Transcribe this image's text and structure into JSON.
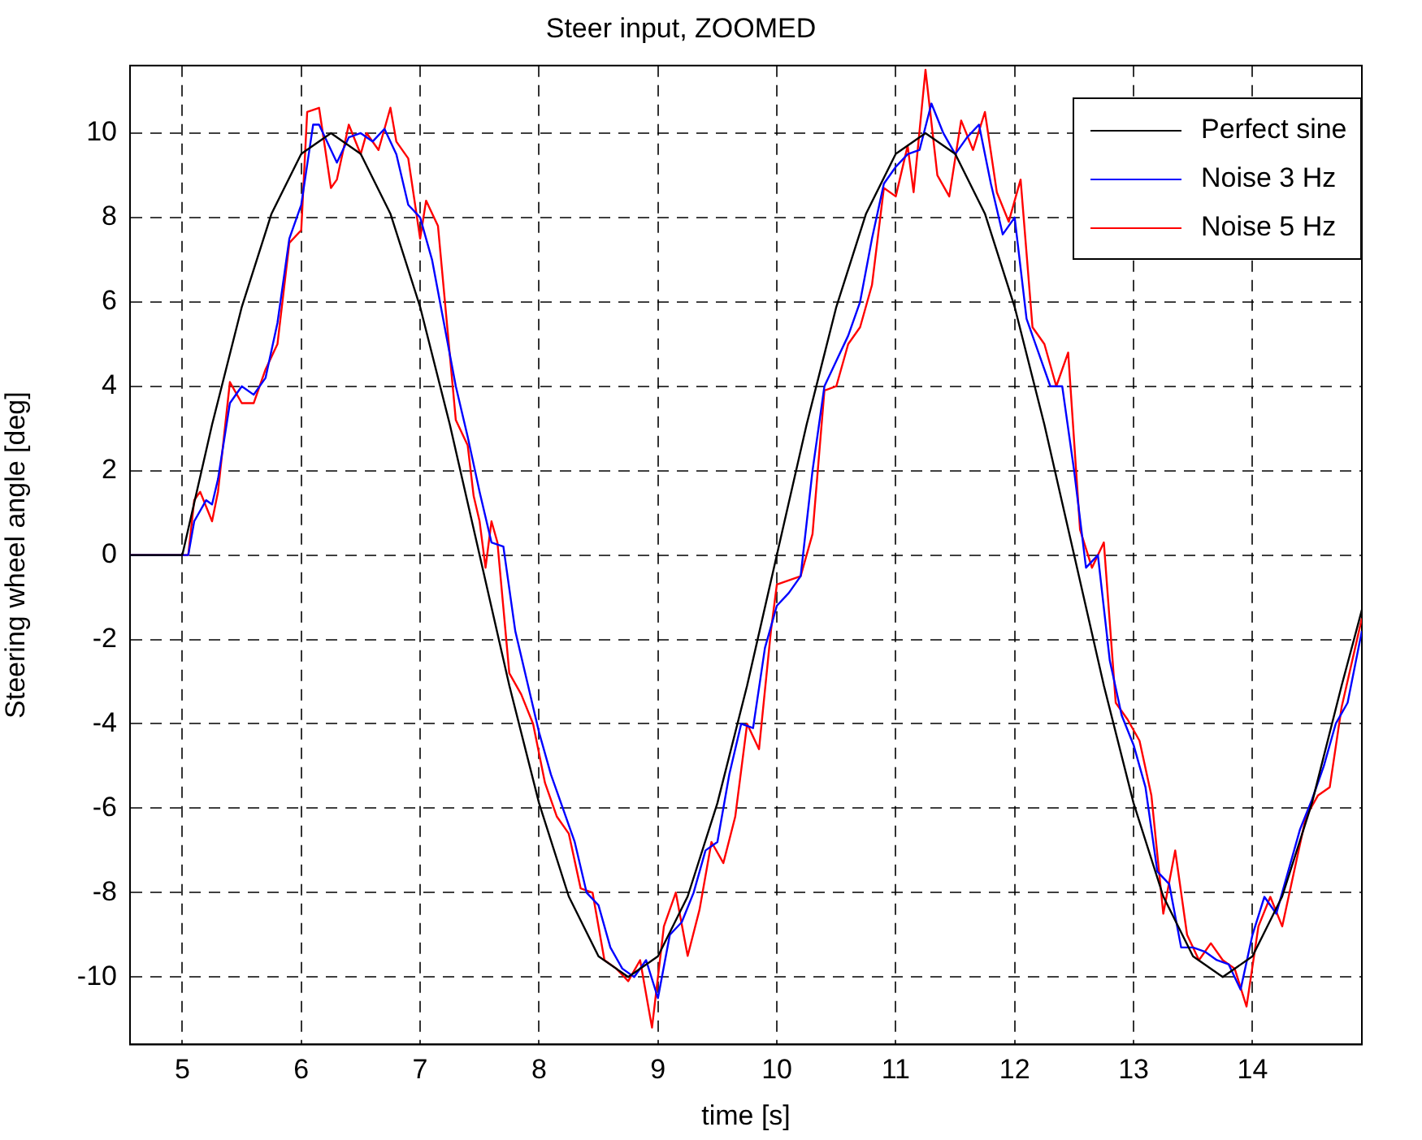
{
  "chart_data": {
    "type": "line",
    "title": "Steer input, ZOOMED",
    "xlabel": "time [s]",
    "ylabel": "Steering wheel angle [deg]",
    "xlim": [
      4.56,
      14.92
    ],
    "ylim": [
      -11.6,
      11.6
    ],
    "xticks": [
      5,
      6,
      7,
      8,
      9,
      10,
      11,
      12,
      13,
      14
    ],
    "yticks": [
      -10,
      -8,
      -6,
      -4,
      -2,
      0,
      2,
      4,
      6,
      8,
      10
    ],
    "grid": true,
    "legend": "top right",
    "marker": "none",
    "line_style": "solid",
    "series": [
      {
        "name": "Perfect sine",
        "color": "#000000",
        "x": [
          4.56,
          5,
          5.25,
          5.5,
          5.75,
          6,
          6.25,
          6.5,
          6.75,
          7,
          7.25,
          7.5,
          7.75,
          8,
          8.25,
          8.5,
          8.75,
          9,
          9.25,
          9.5,
          9.75,
          10,
          10.25,
          10.5,
          10.75,
          11,
          11.25,
          11.5,
          11.75,
          12,
          12.25,
          12.5,
          12.75,
          13,
          13.25,
          13.5,
          13.75,
          14,
          14.25,
          14.5,
          14.75,
          14.92
        ],
        "values": [
          0,
          0,
          3.09,
          5.88,
          8.09,
          9.51,
          10,
          9.51,
          8.09,
          5.88,
          3.09,
          0,
          -3.09,
          -5.88,
          -8.09,
          -9.51,
          -10,
          -9.51,
          -8.09,
          -5.88,
          -3.09,
          0,
          3.09,
          5.88,
          8.09,
          9.51,
          10,
          9.51,
          8.09,
          5.88,
          3.09,
          0,
          -3.09,
          -5.88,
          -8.09,
          -9.51,
          -10,
          -9.51,
          -8.09,
          -5.88,
          -3.09,
          -1.3
        ]
      },
      {
        "name": "Noise 3 Hz",
        "color": "#0000ff",
        "x": [
          4.56,
          5.05,
          5.1,
          5.2,
          5.25,
          5.3,
          5.4,
          5.5,
          5.6,
          5.7,
          5.8,
          5.9,
          6,
          6.1,
          6.15,
          6.3,
          6.4,
          6.5,
          6.6,
          6.7,
          6.8,
          6.9,
          7,
          7.1,
          7.2,
          7.3,
          7.4,
          7.5,
          7.6,
          7.7,
          7.8,
          7.9,
          8,
          8.1,
          8.2,
          8.3,
          8.4,
          8.5,
          8.6,
          8.7,
          8.8,
          8.9,
          9,
          9.1,
          9.2,
          9.3,
          9.4,
          9.5,
          9.6,
          9.7,
          9.8,
          9.9,
          10,
          10.1,
          10.2,
          10.3,
          10.4,
          10.5,
          10.6,
          10.7,
          10.8,
          10.9,
          11,
          11.1,
          11.2,
          11.3,
          11.4,
          11.5,
          11.6,
          11.7,
          11.8,
          11.9,
          12,
          12.1,
          12.2,
          12.3,
          12.4,
          12.5,
          12.6,
          12.7,
          12.8,
          12.9,
          13,
          13.1,
          13.2,
          13.3,
          13.4,
          13.5,
          13.6,
          13.7,
          13.8,
          13.9,
          14,
          14.1,
          14.2,
          14.3,
          14.4,
          14.5,
          14.6,
          14.7,
          14.8,
          14.92
        ],
        "values": [
          0,
          0,
          0.8,
          1.3,
          1.2,
          1.8,
          3.6,
          4,
          3.8,
          4.2,
          5.5,
          7.5,
          8.3,
          10.2,
          10.2,
          9.3,
          9.9,
          10,
          9.8,
          10.1,
          9.5,
          8.3,
          8,
          7,
          5.5,
          4,
          2.8,
          1.5,
          0.3,
          0.2,
          -1.8,
          -3,
          -4.2,
          -5.2,
          -6,
          -6.8,
          -8,
          -8.3,
          -9.3,
          -9.8,
          -10,
          -9.6,
          -10.5,
          -9,
          -8.7,
          -8,
          -7,
          -6.8,
          -5.2,
          -4,
          -4.1,
          -2.2,
          -1.2,
          -0.9,
          -0.5,
          2,
          4,
          4.6,
          5.2,
          6,
          7.5,
          8.8,
          9.2,
          9.5,
          9.6,
          10.7,
          10,
          9.5,
          9.9,
          10.2,
          8.8,
          7.6,
          8,
          5.6,
          4.8,
          4,
          4,
          2,
          -0.3,
          0,
          -2.5,
          -3.8,
          -4.5,
          -5.5,
          -7.5,
          -7.8,
          -9.3,
          -9.3,
          -9.4,
          -9.6,
          -9.7,
          -10.3,
          -9,
          -8.1,
          -8.5,
          -7.5,
          -6.5,
          -5.8,
          -5,
          -4,
          -3.5,
          -1.8
        ]
      },
      {
        "name": "Noise 5 Hz",
        "color": "#ff0000",
        "x": [
          4.56,
          5.05,
          5.1,
          5.15,
          5.25,
          5.3,
          5.4,
          5.5,
          5.6,
          5.7,
          5.8,
          5.9,
          6,
          6.05,
          6.15,
          6.25,
          6.3,
          6.4,
          6.5,
          6.55,
          6.65,
          6.75,
          6.8,
          6.9,
          7,
          7.05,
          7.15,
          7.3,
          7.4,
          7.45,
          7.5,
          7.55,
          7.6,
          7.65,
          7.75,
          7.85,
          7.95,
          8.05,
          8.15,
          8.25,
          8.35,
          8.45,
          8.55,
          8.65,
          8.75,
          8.85,
          8.95,
          9.05,
          9.15,
          9.25,
          9.35,
          9.45,
          9.55,
          9.65,
          9.75,
          9.85,
          9.95,
          10,
          10.2,
          10.3,
          10.4,
          10.5,
          10.6,
          10.7,
          10.8,
          10.9,
          11,
          11.1,
          11.15,
          11.25,
          11.35,
          11.45,
          11.55,
          11.65,
          11.75,
          11.85,
          11.95,
          12.05,
          12.15,
          12.25,
          12.35,
          12.45,
          12.55,
          12.65,
          12.75,
          12.85,
          12.95,
          13.05,
          13.15,
          13.25,
          13.35,
          13.45,
          13.55,
          13.65,
          13.75,
          13.85,
          13.95,
          14.05,
          14.15,
          14.25,
          14.35,
          14.45,
          14.55,
          14.65,
          14.75,
          14.92
        ],
        "values": [
          0,
          0,
          1.3,
          1.5,
          0.8,
          1.5,
          4.1,
          3.6,
          3.6,
          4.4,
          5,
          7.4,
          7.7,
          10.5,
          10.6,
          8.7,
          8.9,
          10.2,
          9.5,
          10,
          9.6,
          10.6,
          9.8,
          9.4,
          7.5,
          8.4,
          7.8,
          3.2,
          2.6,
          1.4,
          0.8,
          -0.3,
          0.8,
          0.3,
          -2.8,
          -3.3,
          -4,
          -5.4,
          -6.2,
          -6.6,
          -7.9,
          -8,
          -9.6,
          -9.8,
          -10.1,
          -9.6,
          -11.2,
          -8.8,
          -8,
          -9.5,
          -8.4,
          -6.8,
          -7.3,
          -6.2,
          -4,
          -4.6,
          -1.8,
          -0.7,
          -0.5,
          0.5,
          3.9,
          4,
          5,
          5.4,
          6.4,
          8.7,
          8.5,
          9.7,
          8.6,
          11.5,
          9,
          8.5,
          10.3,
          9.6,
          10.5,
          8.6,
          7.9,
          8.9,
          5.4,
          5,
          4,
          4.8,
          0.6,
          -0.3,
          0.3,
          -3.5,
          -3.9,
          -4.4,
          -5.7,
          -8.5,
          -7,
          -9,
          -9.6,
          -9.2,
          -9.6,
          -9.8,
          -10.7,
          -8.8,
          -8.1,
          -8.8,
          -7.5,
          -6.2,
          -5.7,
          -5.5,
          -3.6,
          -1.5
        ]
      }
    ]
  }
}
